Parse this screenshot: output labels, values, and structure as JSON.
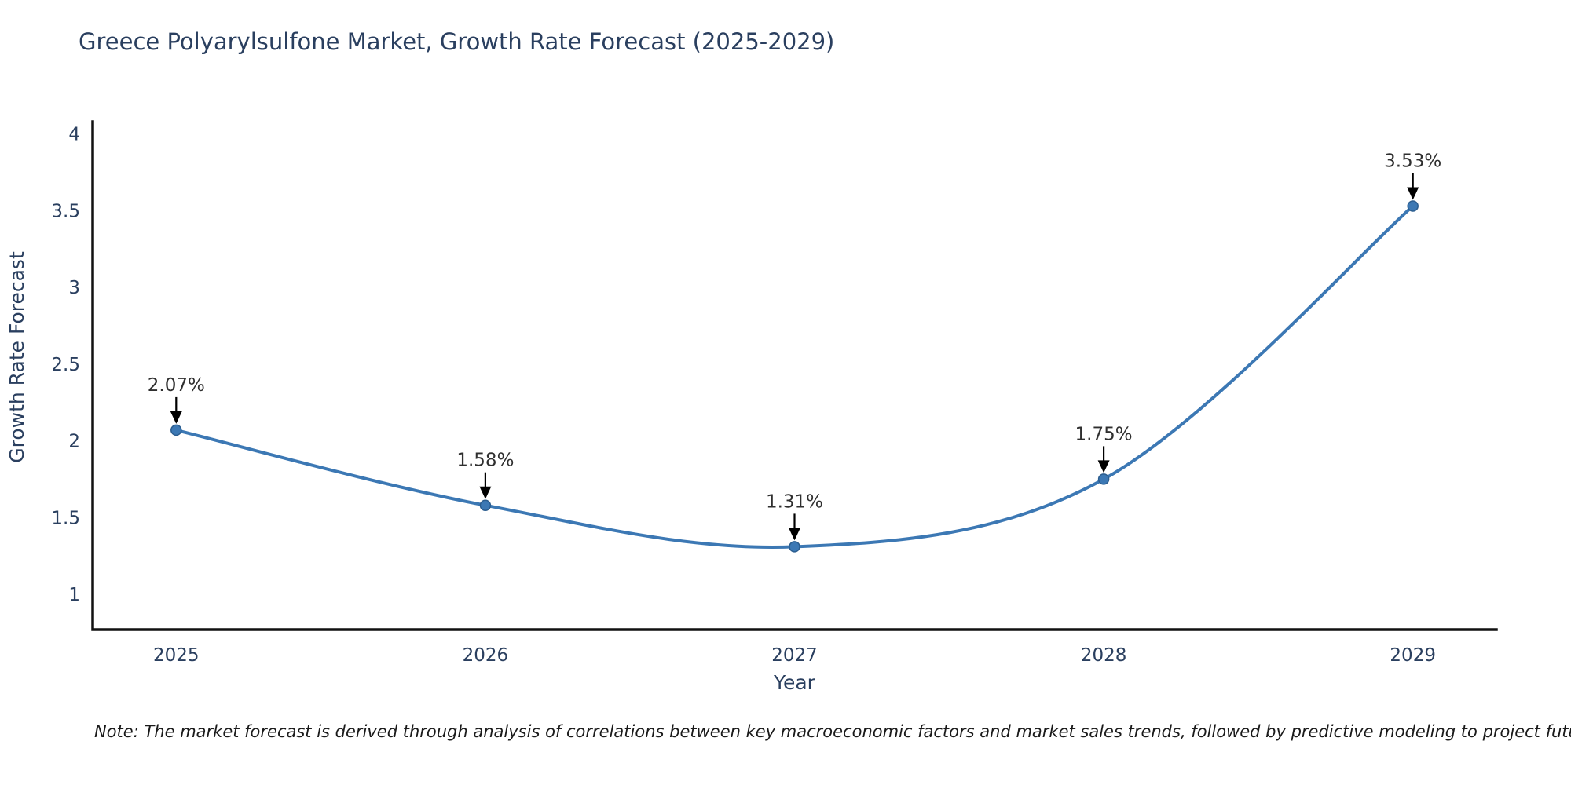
{
  "chart_data": {
    "type": "line",
    "title": "Greece Polyarylsulfone Market, Growth Rate Forecast (2025-2029)",
    "xlabel": "Year",
    "ylabel": "Growth Rate Forecast",
    "x": [
      2025,
      2026,
      2027,
      2028,
      2029
    ],
    "x_tick_labels": [
      "2025",
      "2026",
      "2027",
      "2028",
      "2029"
    ],
    "y": [
      2.07,
      1.58,
      1.31,
      1.75,
      3.53
    ],
    "point_labels": [
      "2.07%",
      "1.58%",
      "1.31%",
      "1.75%",
      "3.53%"
    ],
    "y_ticks": [
      1,
      1.5,
      2,
      2.5,
      3,
      3.5,
      4
    ],
    "y_tick_labels": [
      "1",
      "1.5",
      "2",
      "2.5",
      "3",
      "3.5",
      "4"
    ],
    "xlim": [
      2024.73,
      2029.27
    ],
    "ylim": [
      0.77,
      4.08
    ],
    "line_shape": "spline",
    "grid": false,
    "legend": "none",
    "colors": {
      "line": "#3c78b4",
      "marker_fill": "#3c78b4",
      "marker_edge": "#2b5d8f",
      "axis_line": "#111111",
      "text": "#2a3f5f",
      "annotation_text": "#2f2f2f",
      "arrow": "#000000",
      "background": "#ffffff"
    }
  },
  "note": "Note: The market forecast is derived through analysis of correlations between key macroeconomic factors and market sales trends, followed by predictive modeling to project future sales"
}
